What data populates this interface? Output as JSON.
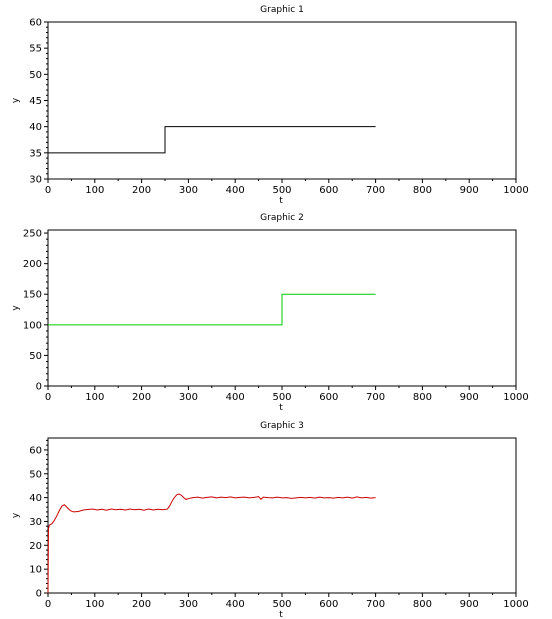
{
  "chart_data": [
    {
      "type": "line",
      "title": "Graphic 1",
      "xlabel": "t",
      "ylabel": "y",
      "xlim": [
        0,
        1000
      ],
      "ylim": [
        30,
        60
      ],
      "x_ticks": [
        0,
        100,
        200,
        300,
        400,
        500,
        600,
        700,
        800,
        900,
        1000
      ],
      "y_ticks": [
        30,
        35,
        40,
        45,
        50,
        55,
        60
      ],
      "grid": false,
      "series": [
        {
          "color": "#000000",
          "points": [
            [
              0,
              35
            ],
            [
              250,
              35
            ],
            [
              250,
              40
            ],
            [
              700,
              40
            ]
          ]
        }
      ]
    },
    {
      "type": "line",
      "title": "Graphic 2",
      "xlabel": "t",
      "ylabel": "y",
      "xlim": [
        0,
        1000
      ],
      "ylim": [
        0,
        255
      ],
      "x_ticks": [
        0,
        100,
        200,
        300,
        400,
        500,
        600,
        700,
        800,
        900,
        1000
      ],
      "y_ticks": [
        0,
        50,
        100,
        150,
        200,
        250
      ],
      "grid": false,
      "series": [
        {
          "color": "#00cc00",
          "points": [
            [
              0,
              100
            ],
            [
              500,
              100
            ],
            [
              500,
              150
            ],
            [
              700,
              150
            ]
          ]
        }
      ]
    },
    {
      "type": "line",
      "title": "Graphic 3",
      "xlabel": "t",
      "ylabel": "y",
      "xlim": [
        0,
        1000
      ],
      "ylim": [
        0,
        65
      ],
      "x_ticks": [
        0,
        100,
        200,
        300,
        400,
        500,
        600,
        700,
        800,
        900,
        1000
      ],
      "y_ticks": [
        0,
        10,
        20,
        30,
        40,
        50,
        60
      ],
      "grid": false,
      "series": [
        {
          "color": "#cc0000",
          "points": [
            [
              0,
              0
            ],
            [
              1,
              27
            ],
            [
              3,
              28.5
            ],
            [
              8,
              29
            ],
            [
              12,
              30
            ],
            [
              18,
              32
            ],
            [
              24,
              34.5
            ],
            [
              30,
              36.5
            ],
            [
              35,
              37
            ],
            [
              40,
              36
            ],
            [
              48,
              34.5
            ],
            [
              55,
              34
            ],
            [
              65,
              34.2
            ],
            [
              75,
              34.8
            ],
            [
              85,
              35
            ],
            [
              95,
              35.2
            ],
            [
              105,
              34.8
            ],
            [
              115,
              35.1
            ],
            [
              125,
              34.7
            ],
            [
              135,
              35.2
            ],
            [
              145,
              34.9
            ],
            [
              155,
              35.1
            ],
            [
              165,
              34.8
            ],
            [
              175,
              35.2
            ],
            [
              185,
              34.9
            ],
            [
              195,
              35.1
            ],
            [
              205,
              34.7
            ],
            [
              215,
              35.2
            ],
            [
              225,
              34.8
            ],
            [
              235,
              35.1
            ],
            [
              245,
              34.9
            ],
            [
              255,
              35.2
            ],
            [
              260,
              36.5
            ],
            [
              265,
              38.5
            ],
            [
              270,
              40
            ],
            [
              275,
              41.2
            ],
            [
              280,
              41.5
            ],
            [
              285,
              41
            ],
            [
              290,
              40
            ],
            [
              295,
              39.2
            ],
            [
              300,
              39.6
            ],
            [
              310,
              40
            ],
            [
              320,
              40.2
            ],
            [
              330,
              39.8
            ],
            [
              340,
              40.1
            ],
            [
              350,
              40.3
            ],
            [
              360,
              39.9
            ],
            [
              370,
              40.2
            ],
            [
              380,
              40
            ],
            [
              390,
              40.3
            ],
            [
              400,
              39.9
            ],
            [
              410,
              40.1
            ],
            [
              420,
              40.2
            ],
            [
              430,
              39.9
            ],
            [
              440,
              40.1
            ],
            [
              450,
              40.4
            ],
            [
              455,
              39.3
            ],
            [
              460,
              40.2
            ],
            [
              470,
              40
            ],
            [
              480,
              39.9
            ],
            [
              490,
              40.2
            ],
            [
              500,
              39.9
            ],
            [
              510,
              40
            ],
            [
              520,
              39.7
            ],
            [
              530,
              39.9
            ],
            [
              540,
              40.1
            ],
            [
              550,
              39.9
            ],
            [
              560,
              40.1
            ],
            [
              570,
              39.8
            ],
            [
              580,
              40.2
            ],
            [
              590,
              39.9
            ],
            [
              600,
              40
            ],
            [
              610,
              39.8
            ],
            [
              620,
              40.1
            ],
            [
              630,
              39.9
            ],
            [
              640,
              40.2
            ],
            [
              650,
              39.8
            ],
            [
              660,
              40.3
            ],
            [
              670,
              39.9
            ],
            [
              680,
              40.1
            ],
            [
              690,
              39.8
            ],
            [
              700,
              40
            ]
          ]
        }
      ]
    }
  ]
}
